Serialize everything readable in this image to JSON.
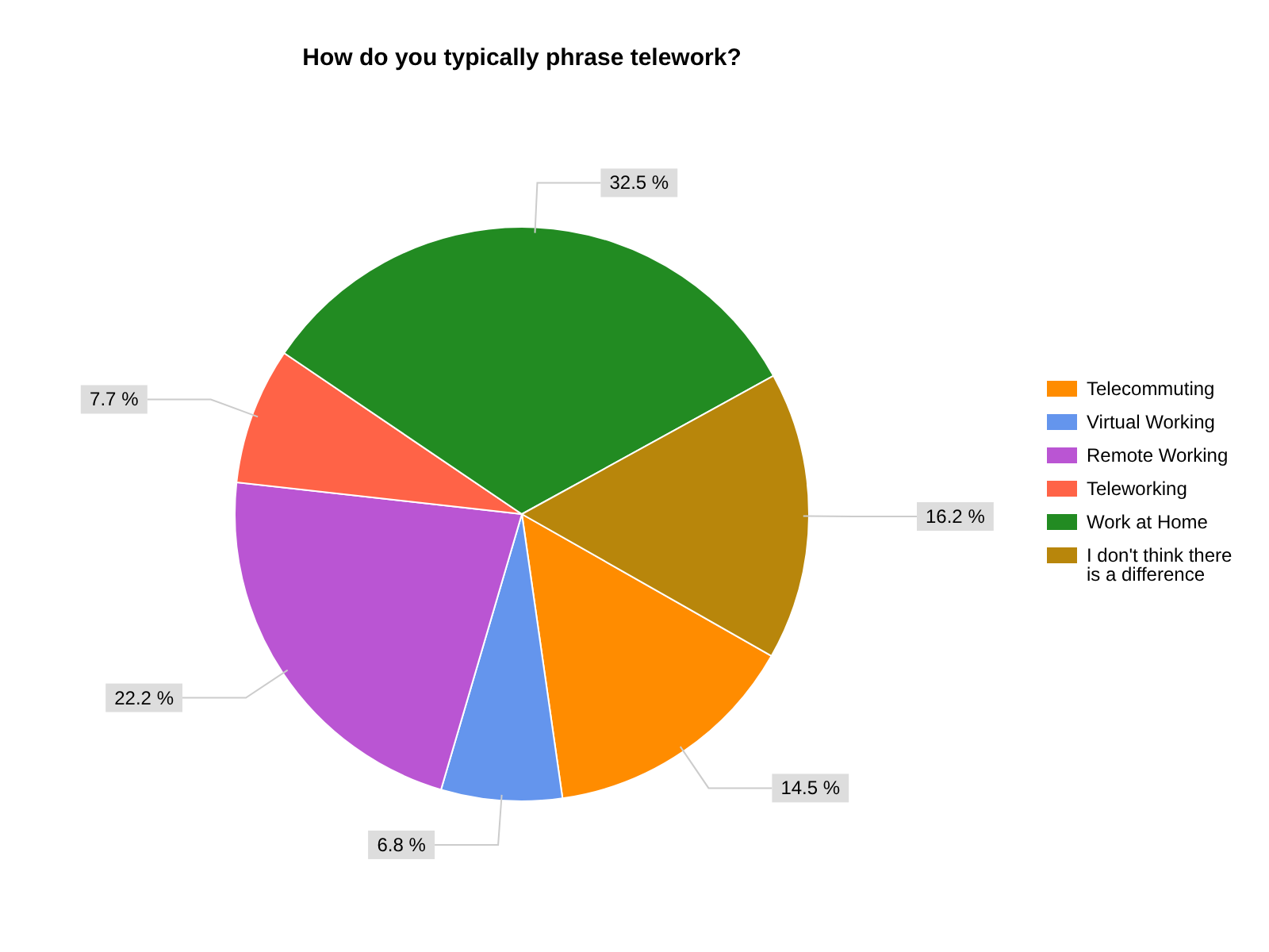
{
  "chart_data": {
    "type": "pie",
    "title": "How do you typically phrase telework?",
    "categories": [
      "Telecommuting",
      "Virtual Working",
      "Remote Working",
      "Teleworking",
      "Work at Home",
      "I don't think there is a difference"
    ],
    "values": [
      14.5,
      6.8,
      22.2,
      7.7,
      32.5,
      16.2
    ],
    "value_labels": [
      "14.5 %",
      "6.8 %",
      "22.2 %",
      "7.7 %",
      "32.5 %",
      "16.2 %"
    ],
    "colors": [
      "#ff8c00",
      "#6495ed",
      "#ba55d3",
      "#ff6347",
      "#228b22",
      "#b8860b"
    ],
    "legend": "right"
  }
}
